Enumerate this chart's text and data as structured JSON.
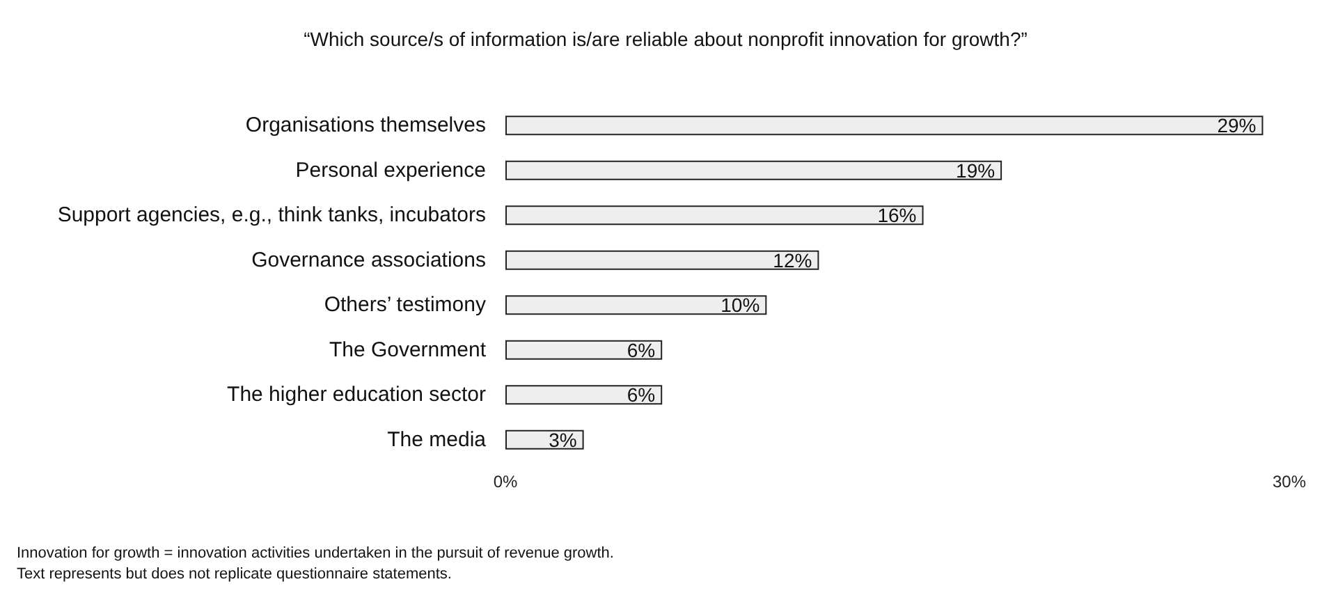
{
  "chart_data": {
    "type": "bar",
    "orientation": "horizontal",
    "title": "“Which source/s of information is/are reliable about nonprofit innovation for growth?”",
    "categories": [
      "Organisations themselves",
      "Personal experience",
      "Support agencies, e.g., think tanks, incubators",
      "Governance associations",
      "Others’ testimony",
      "The Government",
      "The higher education sector",
      "The media"
    ],
    "values": [
      29,
      19,
      16,
      12,
      10,
      6,
      6,
      3
    ],
    "value_labels": [
      "29%",
      "19%",
      "16%",
      "12%",
      "10%",
      "6%",
      "6%",
      "3%"
    ],
    "color": "#eeeeee",
    "xlim": [
      0,
      30
    ],
    "xticks": [
      {
        "value": 0,
        "label": "0%"
      },
      {
        "value": 30,
        "label": "30%"
      }
    ],
    "grid": false,
    "annotations": [
      "Innovation for growth = innovation activities undertaken in the pursuit of revenue growth.",
      "Text represents but does not replicate questionnaire statements."
    ]
  }
}
